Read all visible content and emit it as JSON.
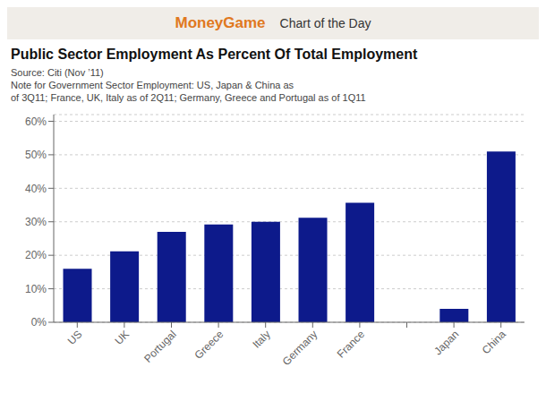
{
  "chart_data": {
    "type": "bar",
    "title": "Public Sector Employment As Percent Of Total Employment",
    "header": [
      "MoneyGame",
      "Chart of the Day"
    ],
    "annotations": [
      "Source: Citi (Nov ’11)",
      "Note for Government Sector Employment: US, Japan & China as",
      "of 3Q11; France, UK, Italy as of 2Q11; Germany, Greece and Portugal as of 1Q11"
    ],
    "categories": [
      "US",
      "UK",
      "Portugal",
      "Greece",
      "Italy",
      "Germany",
      "France",
      null,
      "Japan",
      "China"
    ],
    "values": [
      16.0,
      21.2,
      27.0,
      29.2,
      30.0,
      31.2,
      35.7,
      null,
      4.0,
      51.0
    ],
    "color": "#0d1a8b",
    "ylim": [
      0,
      62
    ],
    "yticks": [
      {
        "value": 0,
        "label": "0%"
      },
      {
        "value": 10,
        "label": "10%"
      },
      {
        "value": 20,
        "label": "20%"
      },
      {
        "value": 30,
        "label": "30%"
      },
      {
        "value": 40,
        "label": "40%"
      },
      {
        "value": 50,
        "label": "50%"
      },
      {
        "value": 60,
        "label": "60%"
      }
    ],
    "grid": true
  }
}
